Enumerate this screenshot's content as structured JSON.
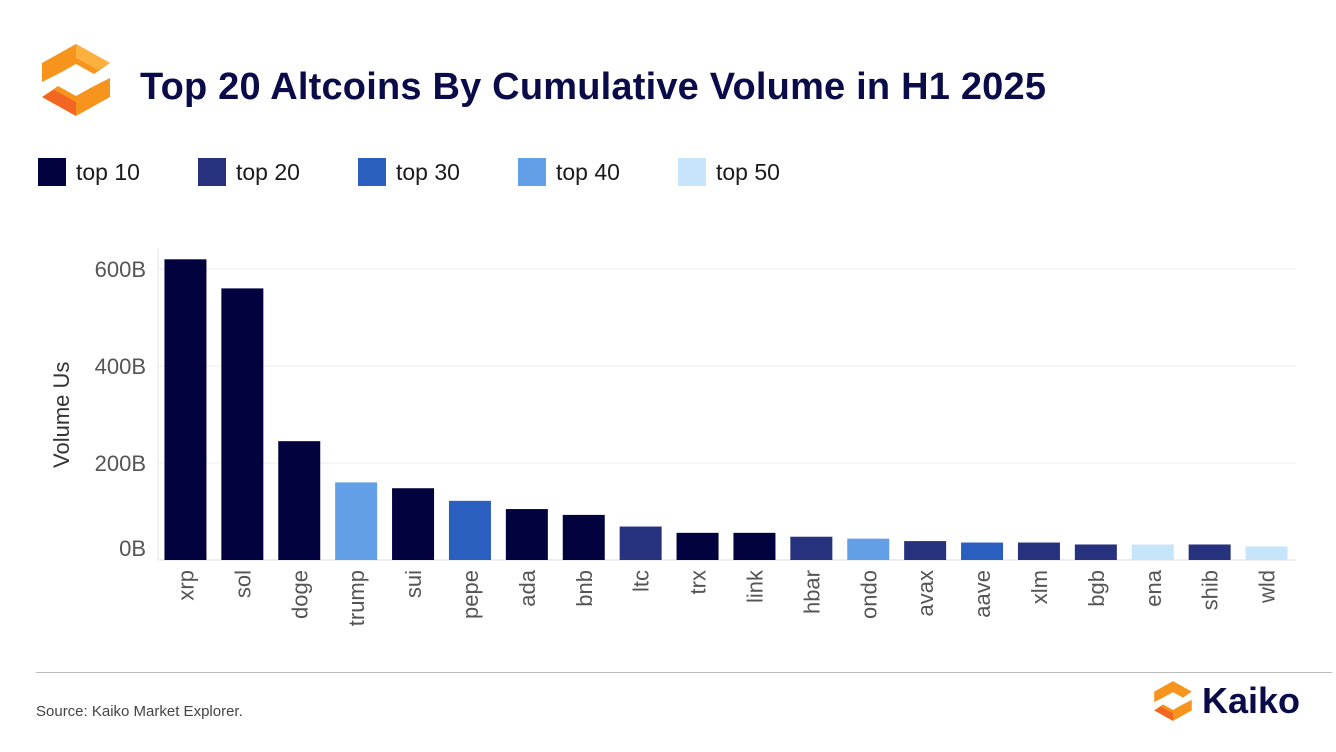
{
  "header": {
    "title": "Top 20 Altcoins By Cumulative Volume in H1 2025",
    "logo_icon": "kaiko-hexagon-logo-icon"
  },
  "footer": {
    "source": "Source: Kaiko Market Explorer.",
    "brand": "Kaiko"
  },
  "colors": {
    "top 10": "#02023f",
    "top 20": "#26327e",
    "top 30": "#2a5ebf",
    "top 40": "#629fe6",
    "top 50": "#c6e4fa",
    "logo_orange": "#f7941d",
    "logo_dark_orange": "#f26522"
  },
  "chart_data": {
    "type": "bar",
    "title": "Top 20 Altcoins By Cumulative Volume in H1 2025",
    "ylabel": "Volume Us",
    "xlabel": "",
    "ylim": [
      0,
      650
    ],
    "yticks": [
      0,
      200,
      400,
      600
    ],
    "ytick_labels": [
      "0B",
      "200B",
      "400B",
      "600B"
    ],
    "grid": true,
    "legend_position": "top-left",
    "legend": [
      "top 10",
      "top 20",
      "top 30",
      "top 40",
      "top 50"
    ],
    "categories": [
      "xrp",
      "sol",
      "doge",
      "trump",
      "sui",
      "pepe",
      "ada",
      "bnb",
      "ltc",
      "trx",
      "link",
      "hbar",
      "ondo",
      "avax",
      "aave",
      "xlm",
      "bgb",
      "ena",
      "shib",
      "wld"
    ],
    "values": [
      620,
      560,
      245,
      160,
      148,
      122,
      105,
      93,
      69,
      56,
      56,
      48,
      44,
      39,
      36,
      36,
      32,
      32,
      32,
      28
    ],
    "groups": [
      "top 10",
      "top 10",
      "top 10",
      "top 40",
      "top 10",
      "top 30",
      "top 10",
      "top 10",
      "top 20",
      "top 10",
      "top 10",
      "top 20",
      "top 40",
      "top 20",
      "top 30",
      "top 20",
      "top 20",
      "top 50",
      "top 20",
      "top 50"
    ]
  }
}
